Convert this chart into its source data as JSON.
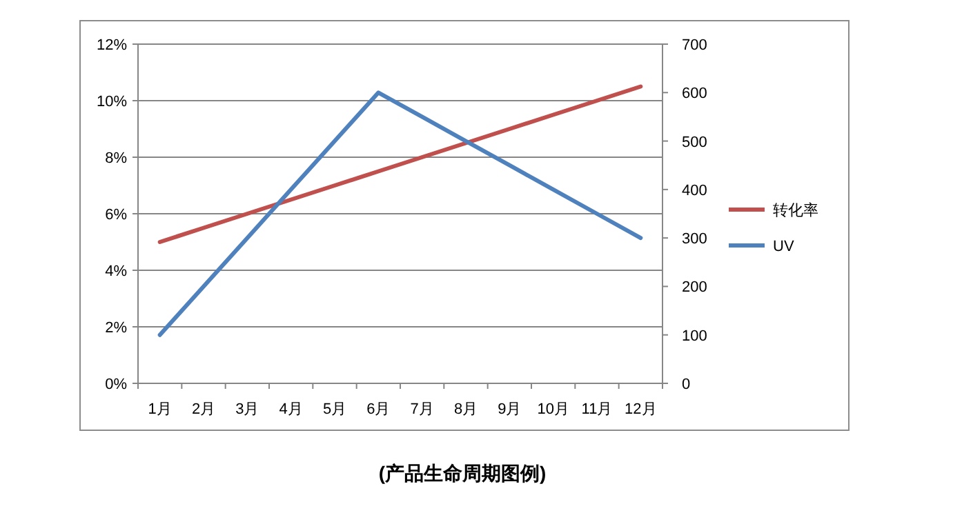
{
  "chart_data": {
    "type": "line",
    "categories": [
      "1月",
      "2月",
      "3月",
      "4月",
      "5月",
      "6月",
      "7月",
      "8月",
      "9月",
      "10月",
      "11月",
      "12月"
    ],
    "series": [
      {
        "name": "转化率",
        "color": "#c0504d",
        "values": [
          5.0,
          5.5,
          6.0,
          6.5,
          7.0,
          7.5,
          8.0,
          8.5,
          9.0,
          9.5,
          10.0,
          10.5
        ]
      },
      {
        "name": "UV",
        "color": "#4f81bd",
        "axis": "y2",
        "values": [
          100,
          200,
          300,
          400,
          500,
          600,
          550,
          500,
          450,
          400,
          350,
          300
        ]
      }
    ],
    "ylim": [
      0,
      12
    ],
    "yticks": [
      {
        "value": 0,
        "label": "0%"
      },
      {
        "value": 2,
        "label": "2%"
      },
      {
        "value": 4,
        "label": "4%"
      },
      {
        "value": 6,
        "label": "6%"
      },
      {
        "value": 8,
        "label": "8%"
      },
      {
        "value": 10,
        "label": "10%"
      },
      {
        "value": 12,
        "label": "12%"
      }
    ],
    "y2lim": [
      0,
      700
    ],
    "y2ticks": [
      0,
      100,
      200,
      300,
      400,
      500,
      600,
      700
    ],
    "grid": "y",
    "legend": "right",
    "marker": "none",
    "line_style": "solid",
    "annotations": [
      "(产品生命周期图例)"
    ]
  }
}
